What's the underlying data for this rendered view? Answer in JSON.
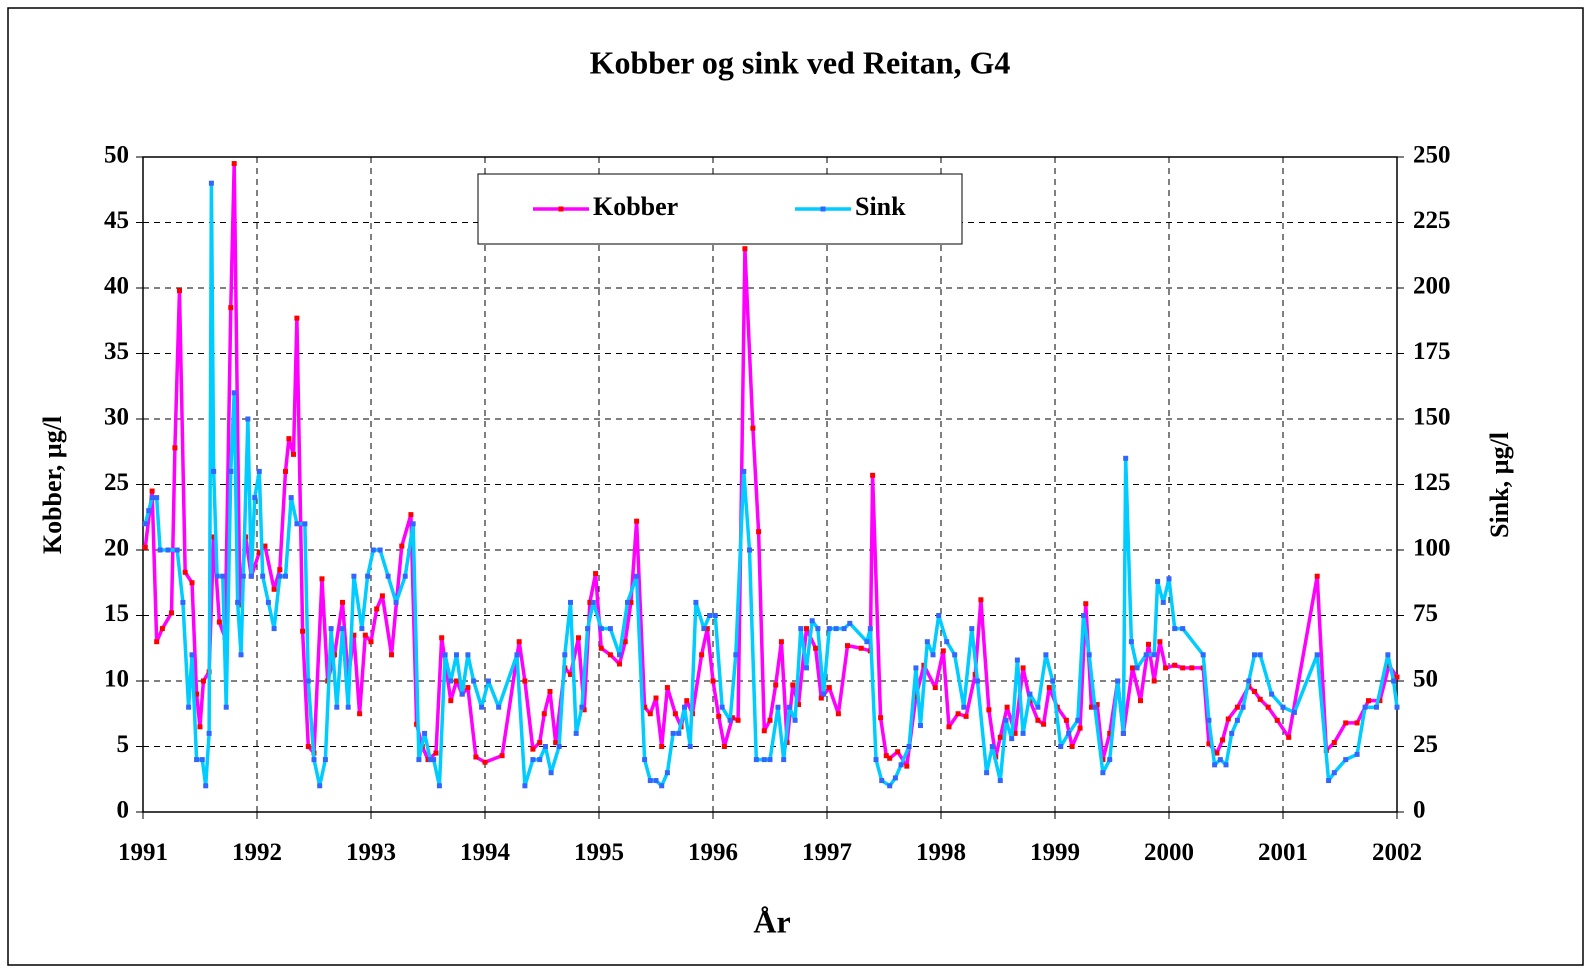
{
  "chart_data": {
    "type": "line",
    "title": "Kobber og sink ved Reitan, G4",
    "x_label": "År",
    "y_label": "Kobber, µg/l",
    "y2_label": "Sink, µg/l",
    "xlim": [
      1991,
      2002
    ],
    "xticks": [
      1991,
      1992,
      1993,
      1994,
      1995,
      1996,
      1997,
      1998,
      1999,
      2000,
      2001,
      2002
    ],
    "ylim": [
      0,
      50
    ],
    "yticks": [
      0,
      5,
      10,
      15,
      20,
      25,
      30,
      35,
      40,
      45,
      50
    ],
    "y2lim": [
      0,
      250
    ],
    "y2ticks": [
      0,
      25,
      50,
      75,
      100,
      125,
      150,
      175,
      200,
      225,
      250
    ],
    "grid": true,
    "legend": "upper center",
    "series": [
      {
        "name": "Kobber",
        "color": "#ff00ff",
        "marker_color": "#ff0000",
        "x": [
          1991.02,
          1991.08,
          1991.12,
          1991.17,
          1991.25,
          1991.28,
          1991.32,
          1991.37,
          1991.43,
          1991.47,
          1991.5,
          1991.53,
          1991.58,
          1991.62,
          1991.67,
          1991.72,
          1991.77,
          1991.8,
          1991.85,
          1991.9,
          1991.95,
          1992.02,
          1992.07,
          1992.15,
          1992.2,
          1992.25,
          1992.28,
          1992.32,
          1992.35,
          1992.4,
          1992.45,
          1992.5,
          1992.57,
          1992.62,
          1992.68,
          1992.75,
          1992.8,
          1992.85,
          1992.9,
          1992.95,
          1993.0,
          1993.05,
          1993.1,
          1993.18,
          1993.27,
          1993.35,
          1993.4,
          1993.45,
          1993.5,
          1993.57,
          1993.62,
          1993.7,
          1993.75,
          1993.8,
          1993.85,
          1993.92,
          1994.0,
          1994.15,
          1994.3,
          1994.35,
          1994.42,
          1994.48,
          1994.52,
          1994.57,
          1994.62,
          1994.7,
          1994.75,
          1994.82,
          1994.87,
          1994.92,
          1994.97,
          1995.02,
          1995.1,
          1995.18,
          1995.23,
          1995.28,
          1995.33,
          1995.4,
          1995.45,
          1995.5,
          1995.55,
          1995.6,
          1995.67,
          1995.72,
          1995.77,
          1995.82,
          1995.9,
          1995.95,
          1996.0,
          1996.05,
          1996.1,
          1996.17,
          1996.22,
          1996.28,
          1996.35,
          1996.4,
          1996.45,
          1996.5,
          1996.55,
          1996.6,
          1996.65,
          1996.7,
          1996.75,
          1996.82,
          1996.9,
          1996.95,
          1997.02,
          1997.1,
          1997.18,
          1997.3,
          1997.38,
          1997.4,
          1997.47,
          1997.52,
          1997.55,
          1997.62,
          1997.7,
          1997.78,
          1997.85,
          1997.95,
          1998.02,
          1998.07,
          1998.15,
          1998.22,
          1998.3,
          1998.35,
          1998.42,
          1998.48,
          1998.52,
          1998.58,
          1998.65,
          1998.72,
          1998.78,
          1998.85,
          1998.9,
          1998.95,
          1999.02,
          1999.1,
          1999.15,
          1999.22,
          1999.27,
          1999.32,
          1999.37,
          1999.42,
          1999.48,
          1999.55,
          1999.6,
          1999.68,
          1999.75,
          1999.82,
          1999.87,
          1999.92,
          1999.97,
          2000.05,
          2000.12,
          2000.2,
          2000.3,
          2000.35,
          2000.42,
          2000.47,
          2000.52,
          2000.6,
          2000.7,
          2000.75,
          2000.8,
          2000.87,
          2000.95,
          2001.05,
          2001.3,
          2001.38,
          2001.45,
          2001.55,
          2001.65,
          2001.75,
          2001.85,
          2001.93,
          2002.0
        ],
        "values": [
          20.2,
          24.5,
          13,
          14,
          15.2,
          27.8,
          39.8,
          18.3,
          17.5,
          9,
          6.5,
          10,
          10.7,
          21,
          14.5,
          13.3,
          38.5,
          49.5,
          15.8,
          21,
          18,
          19.8,
          20.3,
          17,
          18.5,
          26,
          28.5,
          27.3,
          37.7,
          13.8,
          5,
          4.5,
          17.8,
          10,
          12,
          16,
          10.2,
          13.5,
          7.5,
          13.5,
          13,
          15.5,
          16.5,
          12,
          20.3,
          22.7,
          6.7,
          5,
          4,
          4.5,
          13.3,
          8.5,
          10,
          9,
          9.5,
          4.2,
          3.8,
          4.3,
          13,
          10,
          4.8,
          5.3,
          7.5,
          9.2,
          5.3,
          11,
          10.5,
          13.3,
          7.8,
          16,
          18.2,
          12.5,
          12,
          11.3,
          13,
          16,
          22.2,
          8,
          7.5,
          8.7,
          5,
          9.5,
          7.5,
          6.5,
          8.5,
          7.5,
          12,
          14,
          10,
          7.3,
          5,
          7.2,
          7,
          43,
          29.3,
          21.4,
          6.2,
          7,
          9.7,
          13,
          5.3,
          9.7,
          8.2,
          14,
          12.5,
          8.7,
          9.5,
          7.5,
          12.7,
          12.5,
          12.3,
          25.7,
          7.2,
          4.3,
          4.1,
          4.6,
          3.5,
          8.8,
          11.2,
          9.5,
          12.3,
          6.5,
          7.5,
          7.3,
          10.5,
          16.2,
          7.8,
          4.2,
          5.7,
          8,
          6,
          11,
          8.5,
          7,
          6.7,
          9.5,
          8,
          7,
          5,
          6.4,
          15.9,
          8,
          8.2,
          4,
          6,
          10,
          6,
          11,
          8.5,
          12.8,
          10,
          13,
          11,
          11.2,
          11,
          11,
          11,
          5.2,
          4.5,
          5.5,
          7.1,
          8,
          9.6,
          9.2,
          8.6,
          8,
          7,
          5.7,
          18,
          4.7,
          5.3,
          6.8,
          6.8,
          8.5,
          8.5,
          11.2,
          10.3
        ]
      },
      {
        "name": "Sink",
        "color": "#00ccff",
        "marker_color": "#3366ff",
        "axis": "y2",
        "x": [
          1991.02,
          1991.05,
          1991.08,
          1991.12,
          1991.15,
          1991.22,
          1991.3,
          1991.35,
          1991.4,
          1991.43,
          1991.47,
          1991.52,
          1991.55,
          1991.58,
          1991.6,
          1991.62,
          1991.65,
          1991.7,
          1991.73,
          1991.77,
          1991.8,
          1991.83,
          1991.86,
          1991.88,
          1991.92,
          1991.95,
          1991.98,
          1992.02,
          1992.05,
          1992.1,
          1992.15,
          1992.2,
          1992.25,
          1992.3,
          1992.35,
          1992.42,
          1992.45,
          1992.5,
          1992.55,
          1992.6,
          1992.65,
          1992.7,
          1992.75,
          1992.8,
          1992.85,
          1992.92,
          1992.97,
          1993.02,
          1993.08,
          1993.15,
          1993.22,
          1993.3,
          1993.37,
          1993.42,
          1993.47,
          1993.52,
          1993.55,
          1993.6,
          1993.65,
          1993.7,
          1993.75,
          1993.8,
          1993.85,
          1993.9,
          1993.97,
          1994.03,
          1994.12,
          1994.28,
          1994.35,
          1994.42,
          1994.48,
          1994.53,
          1994.58,
          1994.65,
          1994.7,
          1994.75,
          1994.8,
          1994.85,
          1994.9,
          1994.95,
          1995.02,
          1995.1,
          1995.18,
          1995.25,
          1995.33,
          1995.4,
          1995.45,
          1995.5,
          1995.55,
          1995.6,
          1995.65,
          1995.7,
          1995.75,
          1995.8,
          1995.85,
          1995.92,
          1995.97,
          1996.02,
          1996.08,
          1996.15,
          1996.2,
          1996.27,
          1996.32,
          1996.38,
          1996.45,
          1996.5,
          1996.57,
          1996.62,
          1996.67,
          1996.72,
          1996.77,
          1996.82,
          1996.87,
          1996.92,
          1996.97,
          1997.02,
          1997.08,
          1997.15,
          1997.2,
          1997.35,
          1997.38,
          1997.43,
          1997.48,
          1997.55,
          1997.6,
          1997.65,
          1997.72,
          1997.78,
          1997.82,
          1997.88,
          1997.93,
          1997.98,
          1998.05,
          1998.12,
          1998.2,
          1998.27,
          1998.32,
          1998.4,
          1998.45,
          1998.52,
          1998.57,
          1998.62,
          1998.67,
          1998.72,
          1998.78,
          1998.85,
          1998.92,
          1998.98,
          1999.05,
          1999.12,
          1999.2,
          1999.25,
          1999.3,
          1999.35,
          1999.42,
          1999.48,
          1999.55,
          1999.6,
          1999.62,
          1999.67,
          1999.72,
          1999.8,
          1999.87,
          1999.9,
          1999.95,
          2000.0,
          2000.05,
          2000.12,
          2000.3,
          2000.35,
          2000.4,
          2000.45,
          2000.5,
          2000.55,
          2000.6,
          2000.65,
          2000.7,
          2000.75,
          2000.8,
          2000.9,
          2001.0,
          2001.1,
          2001.3,
          2001.4,
          2001.45,
          2001.55,
          2001.65,
          2001.72,
          2001.82,
          2001.92,
          2001.97,
          2002.0
        ],
        "values": [
          110,
          115,
          120,
          120,
          100,
          100,
          100,
          80,
          40,
          60,
          20,
          20,
          10,
          30,
          240,
          130,
          90,
          90,
          40,
          130,
          160,
          80,
          60,
          90,
          150,
          90,
          120,
          130,
          90,
          80,
          70,
          90,
          90,
          120,
          110,
          110,
          50,
          20,
          10,
          20,
          70,
          40,
          70,
          40,
          90,
          70,
          90,
          100,
          100,
          90,
          80,
          90,
          110,
          20,
          30,
          20,
          20,
          10,
          60,
          50,
          60,
          45,
          60,
          50,
          40,
          50,
          40,
          60,
          10,
          20,
          20,
          25,
          15,
          25,
          60,
          80,
          30,
          40,
          70,
          80,
          70,
          70,
          60,
          80,
          90,
          20,
          12,
          12,
          10,
          15,
          30,
          30,
          40,
          25,
          80,
          70,
          75,
          75,
          40,
          35,
          60,
          130,
          100,
          20,
          20,
          20,
          40,
          20,
          40,
          35,
          70,
          55,
          73,
          70,
          45,
          70,
          70,
          70,
          72,
          65,
          70,
          20,
          12,
          10,
          13,
          18,
          25,
          55,
          33,
          65,
          60,
          75,
          65,
          60,
          40,
          70,
          50,
          15,
          25,
          12,
          35,
          28,
          58,
          30,
          45,
          40,
          60,
          50,
          25,
          30,
          35,
          75,
          60,
          40,
          15,
          20,
          50,
          30,
          135,
          65,
          55,
          60,
          60,
          88,
          80,
          89,
          70,
          70,
          60,
          35,
          18,
          20,
          18,
          30,
          35,
          40,
          50,
          60,
          60,
          45,
          40,
          38,
          60,
          12,
          15,
          20,
          22,
          40,
          40,
          60,
          50,
          40
        ]
      }
    ]
  }
}
